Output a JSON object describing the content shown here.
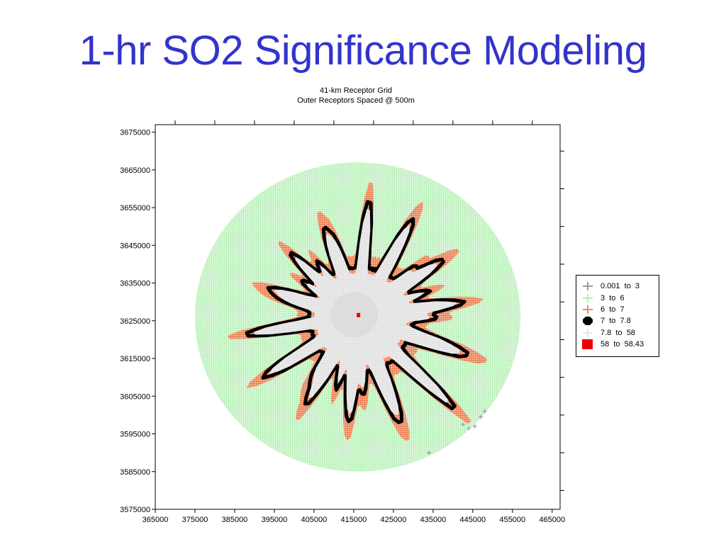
{
  "slide": {
    "title": "1-hr SO2 Significance Modeling"
  },
  "chart_data": {
    "type": "scatter",
    "title": "41-km Receptor Grid",
    "subtitle": "Outer Receptors Spaced @ 500m",
    "xlabel": "",
    "ylabel": "",
    "xlim": [
      365000,
      467000
    ],
    "ylim": [
      3575000,
      3677000
    ],
    "x_ticks": [
      "365000",
      "375000",
      "385000",
      "395000",
      "405000",
      "415000",
      "425000",
      "435000",
      "445000",
      "455000",
      "465000"
    ],
    "y_ticks": [
      "3675000",
      "3665000",
      "3655000",
      "3645000",
      "3635000",
      "3625000",
      "3615000",
      "3605000",
      "3595000",
      "3585000",
      "3575000"
    ],
    "grid": false,
    "legend_position": "right",
    "center": [
      416000,
      3626000
    ],
    "outer_radius_m": 41000,
    "inner_dense_radius_m": 6000,
    "series": [
      {
        "name": "0.001  to  3",
        "color": "#9a9aa8",
        "marker": "plus",
        "points": [
          [
            442500,
            3597500
          ],
          [
            444000,
            3596500
          ],
          [
            445500,
            3597000
          ],
          [
            447000,
            3599500
          ],
          [
            448000,
            3601000
          ],
          [
            434000,
            3590000
          ]
        ]
      },
      {
        "name": "3  to  6",
        "color": "#c8f5c8",
        "marker": "plus",
        "region": "annulus outside significance boundary to 41 km radius"
      },
      {
        "name": "6  to  7",
        "color": "#f08a5d",
        "marker": "plus",
        "region": "jagged band outside 7 ppb contour"
      },
      {
        "name": "7  to  7.8",
        "color": "#000000",
        "marker": "octagon",
        "region": "jagged contour boundary"
      },
      {
        "name": "7.8  to  58",
        "color": "#e8e8e8",
        "marker": "dot",
        "region": "jagged star-shaped interior around source"
      },
      {
        "name": "58  to  58.43",
        "color": "#ee0000",
        "marker": "square",
        "points": [
          [
            416200,
            3626500
          ]
        ]
      }
    ]
  },
  "legend": {
    "entries": [
      {
        "label": "0.001  to  3",
        "color": "#9a9aa8",
        "marker": "plus"
      },
      {
        "label": "3  to  6",
        "color": "#b8f0b8",
        "marker": "plus"
      },
      {
        "label": "6  to  7",
        "color": "#f08a5d",
        "marker": "plus"
      },
      {
        "label": "7  to  7.8",
        "color": "#000000",
        "marker": "octagon"
      },
      {
        "label": "7.8  to  58",
        "color": "#e4e4e4",
        "marker": "plus"
      },
      {
        "label": "58  to  58.43",
        "color": "#ee0000",
        "marker": "square"
      }
    ]
  }
}
